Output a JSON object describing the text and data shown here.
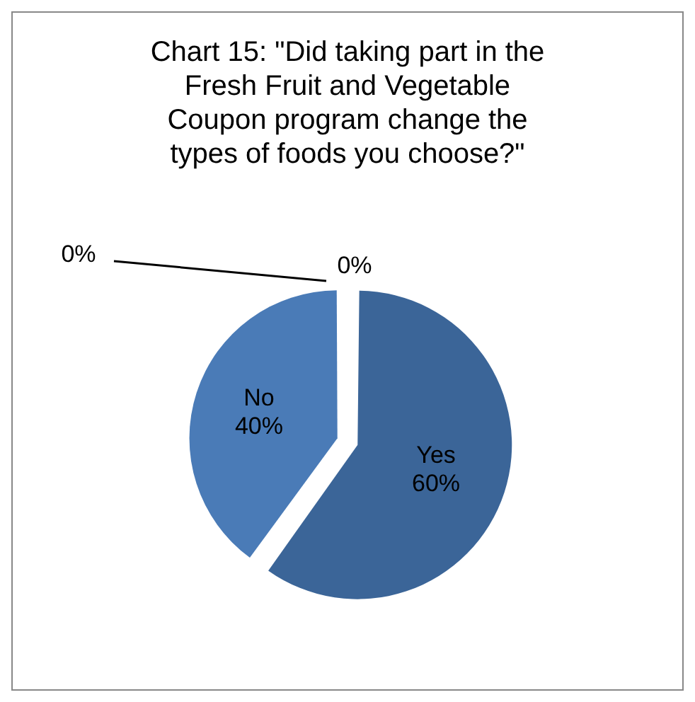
{
  "chart_data": {
    "type": "pie",
    "title": "Chart 15: \"Did taking part in the Fresh Fruit and Vegetable Coupon program change the types of foods you choose?\"",
    "categories": [
      "Yes",
      "No",
      null,
      null
    ],
    "values": [
      60,
      40,
      0,
      0
    ],
    "value_labels": [
      "60%",
      "40%",
      "0%",
      "0%"
    ],
    "colors": [
      "#3b6598",
      "#4a7bb7",
      "#3b6598",
      "#4a7bb7"
    ],
    "legend": false
  }
}
